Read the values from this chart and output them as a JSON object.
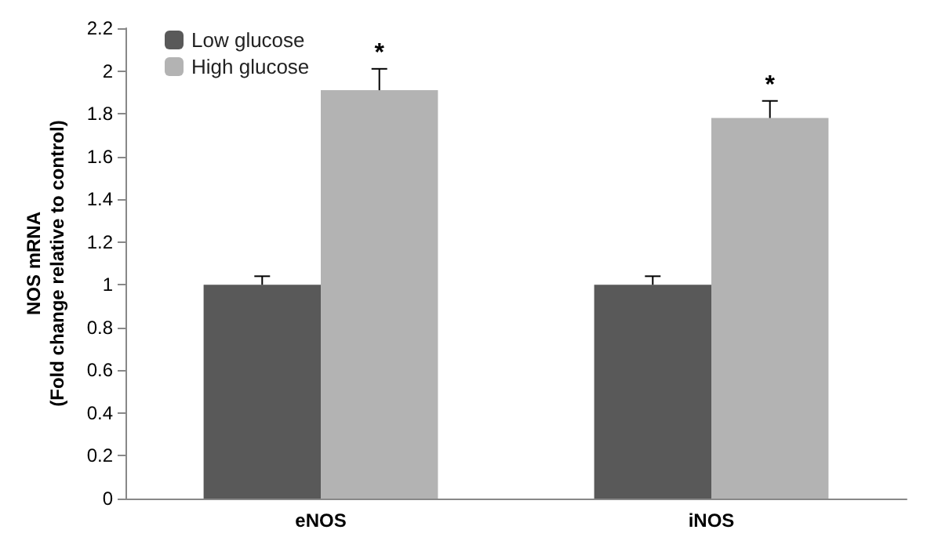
{
  "chart_data": {
    "type": "bar",
    "ylabel": "NOS mRNA\n(Fold change relative to control)",
    "categories": [
      "eNOS",
      "iNOS"
    ],
    "series": [
      {
        "name": "Low glucose",
        "color": "#595959",
        "values": [
          1.0,
          1.0
        ],
        "errors": [
          [
            1.0,
            1.04
          ],
          [
            1.0,
            1.04
          ]
        ]
      },
      {
        "name": "High glucose",
        "color": "#b3b3b3",
        "values": [
          1.91,
          1.78
        ],
        "errors": [
          [
            1.91,
            2.01
          ],
          [
            1.78,
            1.86
          ]
        ]
      }
    ],
    "ylim": [
      0,
      2.2
    ],
    "yticks": [
      0,
      0.2,
      0.4,
      0.6,
      0.8,
      1,
      1.2,
      1.4,
      1.6,
      1.8,
      2,
      2.2
    ],
    "grid": false,
    "legend": "top left",
    "annotations": [
      "*",
      "*"
    ]
  }
}
